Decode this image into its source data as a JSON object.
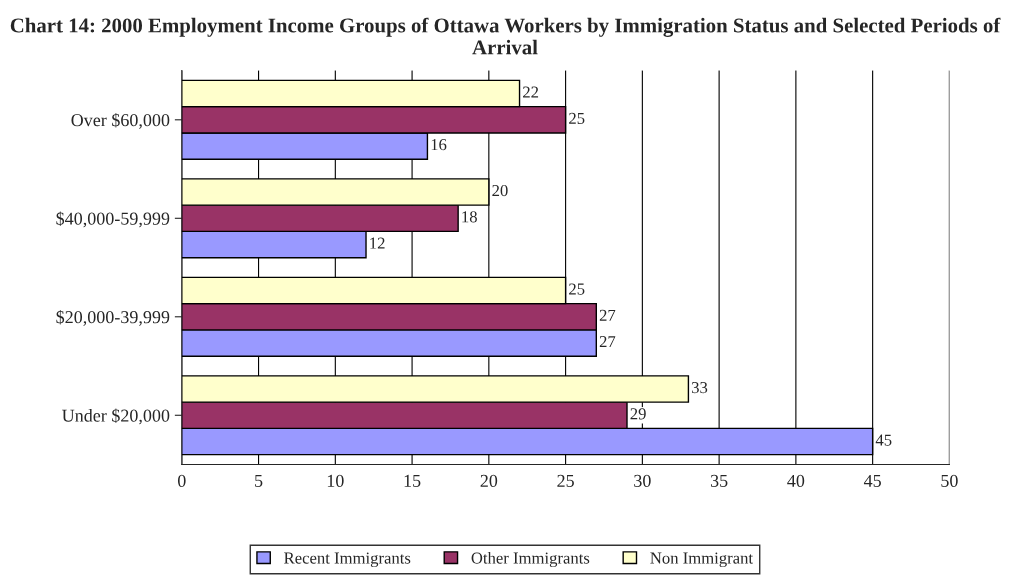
{
  "chart_data": {
    "type": "bar",
    "orientation": "horizontal",
    "title": "Chart 14: 2000 Employment Income Groups of Ottawa Workers by Immigration Status and Selected Periods of Arrival",
    "categories": [
      "Over $60,000",
      "$40,000-59,999",
      "$20,000-39,999",
      "Under $20,000"
    ],
    "series": [
      {
        "name": "Recent Immigrants",
        "color": "#9999ff",
        "values": [
          16,
          12,
          27,
          45
        ]
      },
      {
        "name": "Other Immigrants",
        "color": "#993366",
        "values": [
          25,
          18,
          27,
          29
        ]
      },
      {
        "name": "Non Immigrant",
        "color": "#ffffcc",
        "values": [
          22,
          20,
          25,
          33
        ]
      }
    ],
    "xlim": [
      0,
      50
    ],
    "xticks": [
      0,
      5,
      10,
      15,
      20,
      25,
      30,
      35,
      40,
      45,
      50
    ],
    "grid": "x",
    "legend": "bottom",
    "data_labels": true
  }
}
